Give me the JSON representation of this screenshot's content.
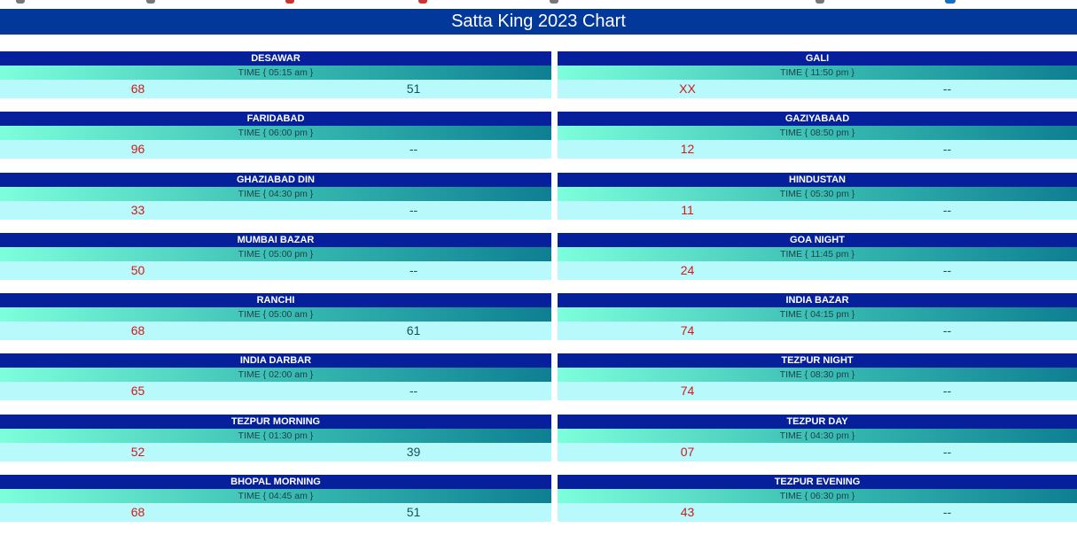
{
  "page": {
    "title": "Satta King 2023 Chart"
  },
  "colors": {
    "title_bg": "#02389a",
    "name_bg": "#06209c",
    "time_gradient_start": "#7dffdc",
    "time_gradient_end": "#0e7f92",
    "result_bg": "#b8fafb",
    "yesterday_color": "#d21a1a",
    "today_color": "#17505e"
  },
  "rows": [
    {
      "left": {
        "name": "DESAWAR",
        "time": "TIME { 05:15 am }",
        "yesterday": "68",
        "today": "51"
      },
      "right": {
        "name": "GALI",
        "time": "TIME { 11:50 pm }",
        "yesterday": "XX",
        "today": "--"
      }
    },
    {
      "left": {
        "name": "FARIDABAD",
        "time": "TIME { 06:00 pm }",
        "yesterday": "96",
        "today": "--"
      },
      "right": {
        "name": "GAZIYABAAD",
        "time": "TIME { 08:50 pm }",
        "yesterday": "12",
        "today": "--"
      }
    },
    {
      "left": {
        "name": "GHAZIABAD DIN",
        "time": "TIME { 04:30 pm }",
        "yesterday": "33",
        "today": "--"
      },
      "right": {
        "name": "HINDUSTAN",
        "time": "TIME { 05:30 pm }",
        "yesterday": "11",
        "today": "--"
      }
    },
    {
      "left": {
        "name": "MUMBAI BAZAR",
        "time": "TIME { 05:00 pm }",
        "yesterday": "50",
        "today": "--"
      },
      "right": {
        "name": "GOA NIGHT",
        "time": "TIME { 11:45 pm }",
        "yesterday": "24",
        "today": "--"
      }
    },
    {
      "left": {
        "name": "RANCHI",
        "time": "TIME { 05:00 am }",
        "yesterday": "68",
        "today": "61"
      },
      "right": {
        "name": "INDIA BAZAR",
        "time": "TIME { 04:15 pm }",
        "yesterday": "74",
        "today": "--"
      }
    },
    {
      "left": {
        "name": "INDIA DARBAR",
        "time": "TIME { 02:00 am }",
        "yesterday": "65",
        "today": "--"
      },
      "right": {
        "name": "TEZPUR NIGHT",
        "time": "TIME { 08:30 pm }",
        "yesterday": "74",
        "today": "--"
      }
    },
    {
      "left": {
        "name": "TEZPUR MORNING",
        "time": "TIME { 01:30 pm }",
        "yesterday": "52",
        "today": "39"
      },
      "right": {
        "name": "TEZPUR DAY",
        "time": "TIME { 04:30 pm }",
        "yesterday": "07",
        "today": "--"
      }
    },
    {
      "left": {
        "name": "BHOPAL MORNING",
        "time": "TIME { 04:45 am }",
        "yesterday": "68",
        "today": "51"
      },
      "right": {
        "name": "TEZPUR EVENING",
        "time": "TIME { 06:30 pm }",
        "yesterday": "43",
        "today": "--"
      }
    }
  ]
}
